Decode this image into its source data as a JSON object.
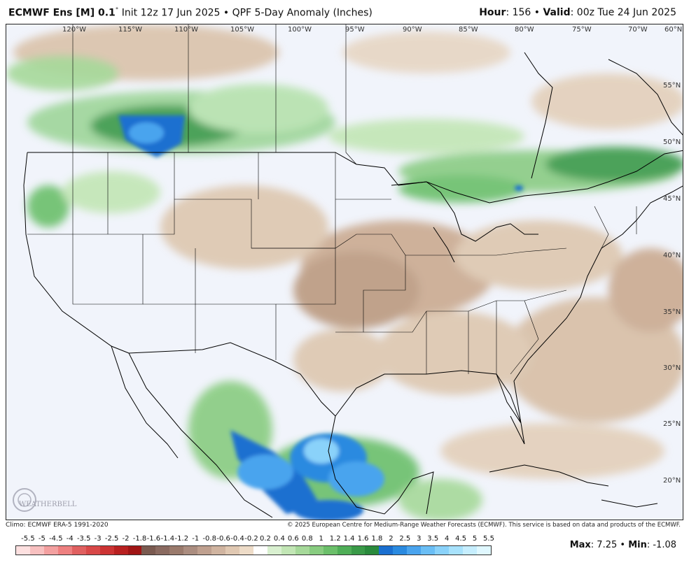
{
  "header": {
    "model": "ECMWF Ens [M] 0.1",
    "degree": "°",
    "init": " Init 12z 17 Jun 2025 • QPF 5-Day Anomaly (Inches)",
    "hour_label": "Hour",
    "hour_value": ": 156 • ",
    "valid_label": "Valid",
    "valid_value": ": 00z Tue 24 Jun 2025"
  },
  "map": {
    "longitudes": [
      "120°W",
      "115°W",
      "110°W",
      "105°W",
      "100°W",
      "95°W",
      "90°W",
      "85°W",
      "80°W",
      "75°W",
      "70°W",
      "60°N"
    ],
    "latitudes": [
      "55°N",
      "50°N",
      "45°N",
      "40°N",
      "35°N",
      "30°N",
      "25°N",
      "20°N"
    ],
    "watermark": "WEATHERBELL"
  },
  "footer": {
    "climo": "Climo: ECMWF ERA-5 1991-2020",
    "copyright": "© 2025 European Centre for Medium-Range Weather Forecasts (ECMWF). This service is based on data and products of the ECMWF."
  },
  "colorbar": {
    "labels": [
      "-5.5",
      "-5",
      "-4.5",
      "-4",
      "-3.5",
      "-3",
      "-2.5",
      "-2",
      "-1.8",
      "-1.6",
      "-1.4",
      "-1.2",
      "-1",
      "-0.8",
      "-0.6",
      "-0.4",
      "-0.2",
      "0.2",
      "0.4",
      "0.6",
      "0.8",
      "1",
      "1.2",
      "1.4",
      "1.6",
      "1.8",
      "2",
      "2.5",
      "3",
      "3.5",
      "4",
      "4.5",
      "5",
      "5.5"
    ],
    "colors": [
      "#fde0e0",
      "#f8c0c0",
      "#f3a0a0",
      "#ee8080",
      "#e06060",
      "#d84848",
      "#cc3333",
      "#b82020",
      "#a01515",
      "#7a5a50",
      "#8a6a60",
      "#9a7a6c",
      "#ab8d80",
      "#bfa08f",
      "#d0b4a0",
      "#e0c8b2",
      "#eedcc8",
      "#ffffff",
      "#d9f0d0",
      "#c2e6b5",
      "#a6d99a",
      "#88cc80",
      "#6bbf6a",
      "#4fae57",
      "#3a9a48",
      "#2a8a3c",
      "#1a6fd0",
      "#2a8ae0",
      "#4aa4ee",
      "#6abef5",
      "#8ad2fa",
      "#a8e2fc",
      "#c6eefe",
      "#e0f8ff"
    ]
  },
  "stats": {
    "max_label": "Max",
    "max_value": ": 7.25 • ",
    "min_label": "Min",
    "min_value": ": -1.08"
  }
}
